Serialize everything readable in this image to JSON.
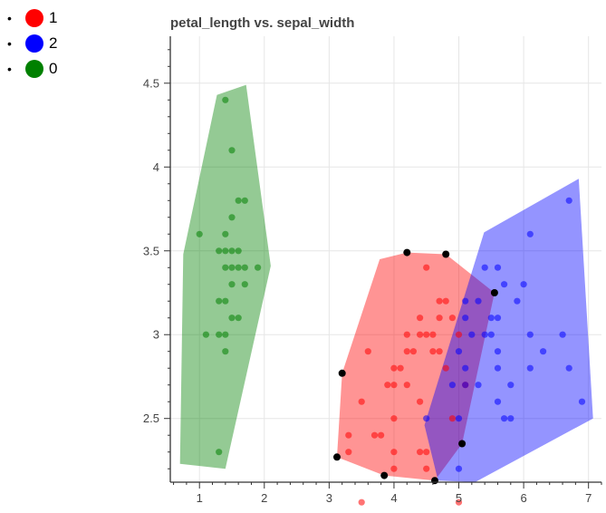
{
  "legend": {
    "items": [
      {
        "label": "1",
        "color": "#ff0000"
      },
      {
        "label": "2",
        "color": "#0000ff"
      },
      {
        "label": "0",
        "color": "#008000"
      }
    ]
  },
  "chart_data": {
    "type": "scatter",
    "title": "petal_length vs. sepal_width",
    "xlabel": "",
    "ylabel": "",
    "xlim": [
      0.55,
      7.2
    ],
    "ylim": [
      2.12,
      4.78
    ],
    "xticks": [
      1,
      2,
      3,
      4,
      5,
      6,
      7
    ],
    "yticks": [
      2.5,
      3,
      3.5,
      4,
      4.5
    ],
    "grid": true,
    "legend_position": "top-left",
    "series": [
      {
        "name": "0",
        "color": "#008000",
        "points": [
          [
            1.4,
            4.4
          ],
          [
            1.5,
            4.1
          ],
          [
            1.6,
            3.8
          ],
          [
            1.7,
            3.8
          ],
          [
            1.5,
            3.7
          ],
          [
            1.0,
            3.6
          ],
          [
            1.4,
            3.6
          ],
          [
            1.3,
            3.5
          ],
          [
            1.4,
            3.5
          ],
          [
            1.5,
            3.5
          ],
          [
            1.6,
            3.5
          ],
          [
            1.4,
            3.4
          ],
          [
            1.5,
            3.4
          ],
          [
            1.6,
            3.4
          ],
          [
            1.7,
            3.4
          ],
          [
            1.9,
            3.4
          ],
          [
            1.5,
            3.3
          ],
          [
            1.7,
            3.3
          ],
          [
            1.4,
            3.2
          ],
          [
            1.3,
            3.2
          ],
          [
            1.5,
            3.1
          ],
          [
            1.6,
            3.1
          ],
          [
            1.3,
            3.0
          ],
          [
            1.4,
            3.0
          ],
          [
            1.1,
            3.0
          ],
          [
            1.4,
            2.9
          ],
          [
            1.3,
            2.3
          ]
        ],
        "hull": [
          [
            0.75,
            3.48
          ],
          [
            1.27,
            4.43
          ],
          [
            1.72,
            4.49
          ],
          [
            2.1,
            3.41
          ],
          [
            1.4,
            2.2
          ],
          [
            0.7,
            2.23
          ]
        ]
      },
      {
        "name": "1",
        "color": "#ff0000",
        "points": [
          [
            4.5,
            3.4
          ],
          [
            4.7,
            3.2
          ],
          [
            4.8,
            3.2
          ],
          [
            4.7,
            3.1
          ],
          [
            4.9,
            3.1
          ],
          [
            4.4,
            3.1
          ],
          [
            4.5,
            3.0
          ],
          [
            4.2,
            3.0
          ],
          [
            4.4,
            3.0
          ],
          [
            4.6,
            3.0
          ],
          [
            5.0,
            3.0
          ],
          [
            4.3,
            2.9
          ],
          [
            4.7,
            2.9
          ],
          [
            4.6,
            2.9
          ],
          [
            3.6,
            2.9
          ],
          [
            4.2,
            2.9
          ],
          [
            4.0,
            2.8
          ],
          [
            4.8,
            2.8
          ],
          [
            4.1,
            2.8
          ],
          [
            3.9,
            2.7
          ],
          [
            4.0,
            2.7
          ],
          [
            4.2,
            2.7
          ],
          [
            5.1,
            2.7
          ],
          [
            4.4,
            2.6
          ],
          [
            3.5,
            2.6
          ],
          [
            4.0,
            2.5
          ],
          [
            4.9,
            2.5
          ],
          [
            3.7,
            2.4
          ],
          [
            3.8,
            2.4
          ],
          [
            3.3,
            2.4
          ],
          [
            4.0,
            2.3
          ],
          [
            4.4,
            2.3
          ],
          [
            3.3,
            2.3
          ],
          [
            4.5,
            2.3
          ],
          [
            4.0,
            2.2
          ],
          [
            4.5,
            2.2
          ],
          [
            3.5,
            2.0
          ],
          [
            5.0,
            2.0
          ]
        ],
        "hull": [
          [
            3.2,
            2.77
          ],
          [
            3.78,
            3.45
          ],
          [
            4.2,
            3.49
          ],
          [
            4.8,
            3.48
          ],
          [
            5.55,
            3.25
          ],
          [
            5.05,
            2.35
          ],
          [
            4.63,
            2.13
          ],
          [
            3.85,
            2.16
          ],
          [
            3.12,
            2.27
          ]
        ]
      },
      {
        "name": "2",
        "color": "#0000ff",
        "points": [
          [
            6.7,
            3.8
          ],
          [
            6.1,
            3.6
          ],
          [
            5.4,
            3.4
          ],
          [
            5.6,
            3.4
          ],
          [
            5.7,
            3.3
          ],
          [
            6.0,
            3.3
          ],
          [
            5.1,
            3.2
          ],
          [
            5.3,
            3.2
          ],
          [
            5.9,
            3.2
          ],
          [
            5.5,
            3.1
          ],
          [
            5.6,
            3.1
          ],
          [
            5.1,
            3.1
          ],
          [
            5.4,
            3.0
          ],
          [
            5.5,
            3.0
          ],
          [
            6.1,
            3.0
          ],
          [
            6.6,
            3.0
          ],
          [
            5.2,
            3.0
          ],
          [
            5.0,
            2.9
          ],
          [
            5.6,
            2.9
          ],
          [
            6.3,
            2.9
          ],
          [
            5.1,
            2.8
          ],
          [
            5.6,
            2.8
          ],
          [
            6.1,
            2.8
          ],
          [
            6.7,
            2.8
          ],
          [
            5.3,
            2.7
          ],
          [
            5.1,
            2.7
          ],
          [
            4.9,
            2.7
          ],
          [
            5.8,
            2.7
          ],
          [
            5.6,
            2.6
          ],
          [
            6.9,
            2.6
          ],
          [
            5.0,
            2.5
          ],
          [
            5.8,
            2.5
          ],
          [
            4.5,
            2.5
          ],
          [
            5.7,
            2.5
          ],
          [
            5.0,
            2.2
          ]
        ],
        "hull": [
          [
            4.47,
            2.46
          ],
          [
            4.68,
            2.13
          ],
          [
            5.25,
            2.12
          ],
          [
            7.07,
            2.5
          ],
          [
            6.85,
            3.93
          ],
          [
            5.39,
            3.61
          ]
        ]
      },
      {
        "name": "",
        "color": "#000000",
        "points": [
          [
            3.2,
            2.77
          ],
          [
            4.2,
            3.49
          ],
          [
            4.8,
            3.48
          ],
          [
            5.55,
            3.25
          ],
          [
            5.05,
            2.35
          ],
          [
            4.63,
            2.13
          ],
          [
            3.85,
            2.16
          ],
          [
            3.12,
            2.27
          ]
        ]
      }
    ]
  }
}
